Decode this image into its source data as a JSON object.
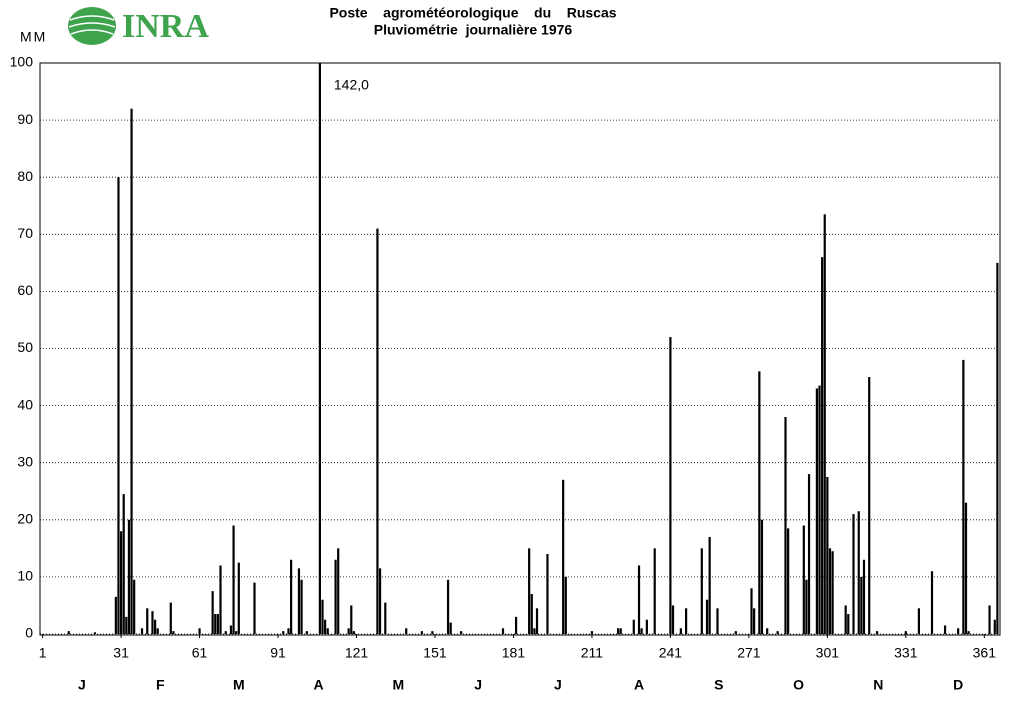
{
  "chart_data": {
    "type": "bar",
    "logo": "INRA",
    "title": "Poste    agrométéorologique    du    Ruscas",
    "subtitle": "Pluviométrie  journalière 1976",
    "y_label": "MM",
    "color": "#000000",
    "grid": true,
    "xlim": [
      0,
      367
    ],
    "ylim": [
      0,
      100
    ],
    "xticks": [
      1,
      31,
      61,
      91,
      121,
      151,
      181,
      211,
      241,
      271,
      301,
      331,
      361
    ],
    "yticks": [
      0,
      10,
      20,
      30,
      40,
      50,
      60,
      70,
      80,
      90,
      100
    ],
    "months": [
      "J",
      "F",
      "M",
      "A",
      "M",
      "J",
      "J",
      "A",
      "S",
      "O",
      "N",
      "D"
    ],
    "x": [
      11,
      21,
      29,
      30,
      31,
      32,
      33,
      34,
      35,
      36,
      39,
      41,
      43,
      44,
      45,
      50,
      51,
      61,
      66,
      67,
      68,
      69,
      71,
      73,
      74,
      75,
      76,
      82,
      93,
      95,
      96,
      99,
      100,
      102,
      107,
      108,
      109,
      110,
      113,
      114,
      118,
      119,
      120,
      129,
      130,
      132,
      140,
      146,
      150,
      156,
      157,
      161,
      177,
      182,
      187,
      188,
      189,
      190,
      194,
      200,
      201,
      211,
      221,
      222,
      227,
      229,
      230,
      232,
      235,
      241,
      242,
      245,
      247,
      253,
      255,
      256,
      259,
      266,
      272,
      273,
      275,
      276,
      278,
      282,
      285,
      286,
      292,
      293,
      294,
      297,
      298,
      299,
      300,
      301,
      302,
      303,
      308,
      309,
      311,
      313,
      314,
      315,
      317,
      320,
      331,
      336,
      341,
      346,
      351,
      353,
      354,
      355,
      363,
      365,
      366
    ],
    "values": [
      0.5,
      0.3,
      6.5,
      80,
      18,
      24.5,
      3,
      20,
      92,
      9.5,
      1,
      4.5,
      4,
      2.5,
      1,
      5.5,
      0.5,
      1,
      7.5,
      3.5,
      3.5,
      12,
      0.5,
      1.5,
      19,
      0.5,
      12.5,
      9,
      0.5,
      1,
      13,
      11.5,
      9.5,
      0.5,
      142,
      6,
      2.5,
      1,
      13,
      15,
      1,
      5,
      0.5,
      71,
      11.5,
      5.5,
      1,
      0.5,
      0.5,
      9.5,
      2,
      0.5,
      1,
      3,
      15,
      7,
      1,
      4.5,
      14,
      27,
      10,
      0.5,
      1,
      1,
      2.5,
      12,
      1,
      2.5,
      15,
      52,
      5,
      1,
      4.5,
      15,
      6,
      17,
      4.5,
      0.5,
      8,
      4.5,
      46,
      20,
      1,
      0.5,
      38,
      18.5,
      19,
      9.5,
      28,
      43,
      43.5,
      66,
      73.5,
      27.5,
      15,
      14.5,
      5,
      3.5,
      21,
      21.5,
      10,
      13,
      45,
      0.5,
      0.5,
      4.5,
      11,
      1.5,
      1,
      48,
      23,
      0.5,
      5,
      2.5,
      65
    ],
    "value_labels": [
      null,
      null,
      null,
      null,
      null,
      null,
      null,
      null,
      null,
      null,
      null,
      null,
      null,
      null,
      null,
      null,
      null,
      null,
      null,
      null,
      null,
      null,
      null,
      null,
      null,
      null,
      null,
      null,
      null,
      null,
      null,
      null,
      null,
      null,
      "142,0",
      null,
      null,
      null,
      null,
      null,
      null,
      null,
      null,
      null,
      null,
      null,
      null,
      null,
      null,
      null,
      null,
      null,
      null,
      null,
      null,
      null,
      null,
      null,
      null,
      null,
      null,
      null,
      null,
      null,
      null,
      null,
      null,
      null,
      null,
      null,
      null,
      null,
      null,
      null,
      null,
      null,
      null,
      null,
      null,
      null,
      null,
      null,
      null,
      null,
      null,
      null,
      null,
      null,
      null,
      null,
      null,
      null,
      null,
      null,
      null,
      null,
      null,
      null,
      null,
      null,
      null,
      null,
      null,
      null,
      null,
      null,
      null,
      null,
      null,
      null,
      null,
      null,
      null,
      null,
      null
    ]
  }
}
